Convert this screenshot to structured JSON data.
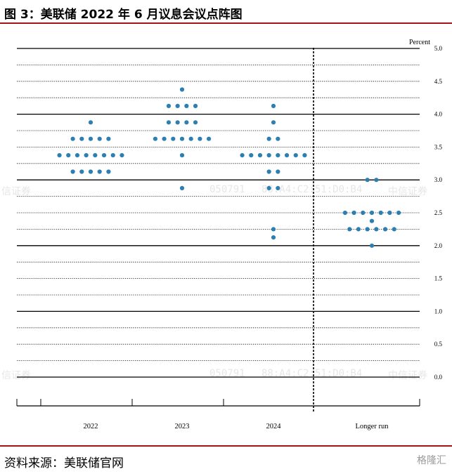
{
  "figure": {
    "title": "图 3：美联储 2022 年 6 月议息会议点阵图",
    "source": "资料来源：美联储官网",
    "logo": "格隆汇",
    "watermarks": [
      "信证券",
      "050791",
      "88:A4:C2:51:D0:B4",
      "中信证券",
      "信证券",
      "050791",
      "88:A4:C2:51:D0:B4",
      "中信证券"
    ]
  },
  "chart_data": {
    "type": "scatter",
    "ylabel": "Percent",
    "ylim": [
      0.0,
      5.0
    ],
    "yticks": [
      "0.0",
      "0.5",
      "1.0",
      "1.5",
      "2.0",
      "2.5",
      "3.0",
      "3.5",
      "4.0",
      "4.5",
      "5.0"
    ],
    "categories": [
      "2022",
      "2023",
      "2024",
      "Longer run"
    ],
    "dot_color": "#2e7fb1",
    "grid": true,
    "series": [
      {
        "category": "2022",
        "rates": [
          {
            "y": 3.875,
            "count": 1
          },
          {
            "y": 3.625,
            "count": 5
          },
          {
            "y": 3.375,
            "count": 8
          },
          {
            "y": 3.125,
            "count": 5
          }
        ]
      },
      {
        "category": "2023",
        "rates": [
          {
            "y": 4.375,
            "count": 1
          },
          {
            "y": 4.125,
            "count": 4
          },
          {
            "y": 3.875,
            "count": 4
          },
          {
            "y": 3.625,
            "count": 7
          },
          {
            "y": 3.375,
            "count": 1
          },
          {
            "y": 2.875,
            "count": 1
          }
        ]
      },
      {
        "category": "2024",
        "rates": [
          {
            "y": 4.125,
            "count": 1
          },
          {
            "y": 3.875,
            "count": 1
          },
          {
            "y": 3.625,
            "count": 2
          },
          {
            "y": 3.375,
            "count": 8
          },
          {
            "y": 3.125,
            "count": 2
          },
          {
            "y": 2.875,
            "count": 2
          },
          {
            "y": 2.25,
            "count": 1
          },
          {
            "y": 2.125,
            "count": 1
          }
        ]
      },
      {
        "category": "Longer run",
        "rates": [
          {
            "y": 3.0,
            "count": 2
          },
          {
            "y": 2.5,
            "count": 7
          },
          {
            "y": 2.375,
            "count": 1
          },
          {
            "y": 2.25,
            "count": 6
          },
          {
            "y": 2.0,
            "count": 1
          }
        ]
      }
    ]
  }
}
